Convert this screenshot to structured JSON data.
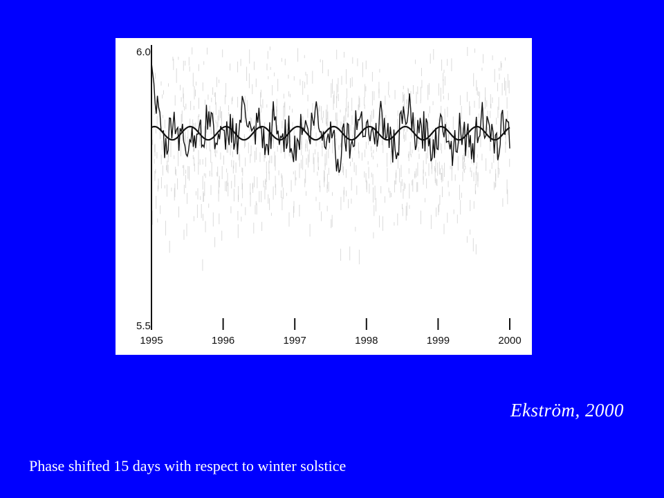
{
  "slide": {
    "citation": "Ekström, 2000",
    "caption": "Phase shifted 15 days with respect to winter solstice"
  },
  "colors": {
    "background": "#0000ff",
    "panel": "#ffffff",
    "ink": "#111111",
    "scatter": "#bdbdbd",
    "text": "#ffffff"
  },
  "chart_data": {
    "type": "line",
    "title": "",
    "xlabel": "",
    "ylabel": "",
    "xlim": [
      1995,
      2000
    ],
    "ylim": [
      5.5,
      6.0
    ],
    "x_ticks": [
      1995,
      1996,
      1997,
      1998,
      1999,
      2000
    ],
    "x_tick_labels": [
      "1995",
      "1996",
      "1997",
      "1998",
      "1999",
      "2000"
    ],
    "y_ticks": [
      5.5,
      6.0
    ],
    "y_tick_labels": [
      "5.5",
      "6.0"
    ],
    "grid": false,
    "legend": "none",
    "series": [
      {
        "style": "fitted-sinusoid",
        "period_years": 0.5,
        "mean": 5.843,
        "amplitude": 0.012,
        "phase_days_after_winter_solstice": 15
      },
      {
        "style": "noisy-observed",
        "x": [
          1995.0,
          1995.1,
          1995.2,
          1995.3,
          1995.4,
          1995.5,
          1995.6,
          1995.7,
          1995.8,
          1995.9,
          1996.0,
          1996.1,
          1996.2,
          1996.3,
          1996.4,
          1996.5,
          1996.6,
          1996.7,
          1996.8,
          1996.9,
          1997.0,
          1997.1,
          1997.2,
          1997.3,
          1997.4,
          1997.5,
          1997.6,
          1997.7,
          1997.8,
          1997.9,
          1998.0,
          1998.1,
          1998.2,
          1998.3,
          1998.4,
          1998.5,
          1998.6,
          1998.7,
          1998.8,
          1998.9,
          1999.0,
          1999.1,
          1999.2,
          1999.3,
          1999.4,
          1999.5,
          1999.6,
          1999.7,
          1999.8,
          1999.9,
          2000.0
        ],
        "y": [
          5.97,
          5.86,
          5.81,
          5.87,
          5.84,
          5.82,
          5.85,
          5.83,
          5.88,
          5.84,
          5.82,
          5.86,
          5.83,
          5.9,
          5.82,
          5.86,
          5.8,
          5.87,
          5.83,
          5.85,
          5.81,
          5.86,
          5.84,
          5.88,
          5.83,
          5.86,
          5.79,
          5.85,
          5.82,
          5.88,
          5.86,
          5.83,
          5.87,
          5.84,
          5.81,
          5.86,
          5.88,
          5.83,
          5.85,
          5.82,
          5.84,
          5.87,
          5.81,
          5.86,
          5.83,
          5.82,
          5.88,
          5.84,
          5.81,
          5.86,
          5.85
        ]
      }
    ]
  }
}
